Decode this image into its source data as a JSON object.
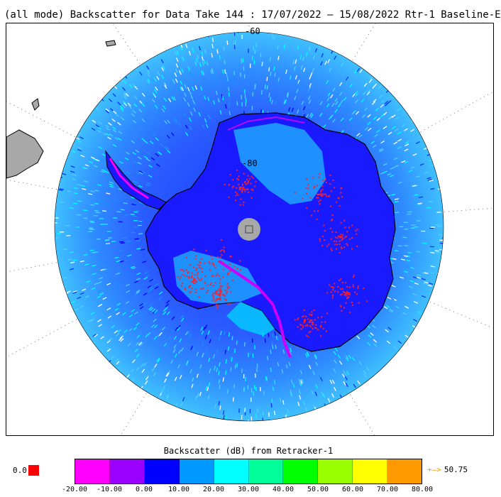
{
  "title": "(all mode) Backscatter for Data Take 144 : 17/07/2022 – 15/08/2022 Rtr-1 Baseline-E",
  "map": {
    "lat_labels": [
      "-60",
      "-80"
    ],
    "pole_marker": "□"
  },
  "colorbar": {
    "title": "Backscatter (dB) from Retracker-1",
    "under_value": "0.0",
    "under_color": "#ff0000",
    "over_value": "50.75",
    "over_arrow": "+–>",
    "tick_labels": [
      "-20.00",
      "-10.00",
      "0.00",
      "10.00",
      "20.00",
      "30.00",
      "40.00",
      "50.00",
      "60.00",
      "70.00",
      "80.00"
    ],
    "colors": [
      "#ff00ff",
      "#9900ff",
      "#0000ff",
      "#0099ff",
      "#00ffff",
      "#00ff99",
      "#00ff00",
      "#99ff00",
      "#ffff00",
      "#ff9900"
    ]
  }
}
